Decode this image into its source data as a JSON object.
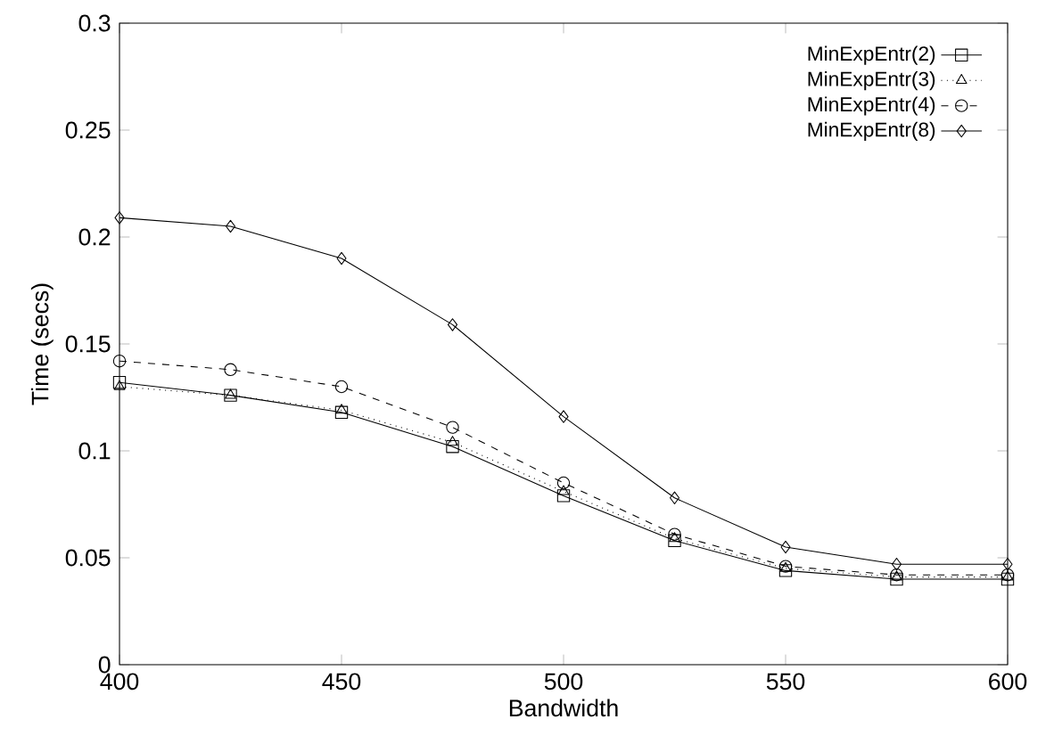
{
  "chart_data": {
    "type": "line",
    "xlabel": "Bandwidth",
    "ylabel": "Time (secs)",
    "x": [
      400,
      425,
      450,
      475,
      500,
      525,
      550,
      575,
      600
    ],
    "xlim": [
      400,
      600
    ],
    "xticks": [
      400,
      450,
      500,
      550,
      600
    ],
    "ylim": [
      0,
      0.3
    ],
    "yticks": [
      0,
      0.05,
      0.1,
      0.15,
      0.2,
      0.25,
      0.3
    ],
    "legend": "top right",
    "grid": false,
    "series": [
      {
        "name": "MinExpEntr(2)",
        "color": "#000000",
        "marker": "square",
        "line_style": "solid",
        "values": [
          0.132,
          0.126,
          0.118,
          0.102,
          0.079,
          0.058,
          0.044,
          0.04,
          0.04
        ]
      },
      {
        "name": "MinExpEntr(3)",
        "color": "#000000",
        "marker": "triangle",
        "line_style": "dotted",
        "values": [
          0.13,
          0.126,
          0.119,
          0.104,
          0.081,
          0.059,
          0.045,
          0.041,
          0.041
        ]
      },
      {
        "name": "MinExpEntr(4)",
        "color": "#000000",
        "marker": "circle",
        "line_style": "dashed",
        "values": [
          0.142,
          0.138,
          0.13,
          0.111,
          0.085,
          0.061,
          0.046,
          0.042,
          0.042
        ]
      },
      {
        "name": "MinExpEntr(8)",
        "color": "#000000",
        "marker": "diamond",
        "line_style": "solid",
        "values": [
          0.209,
          0.205,
          0.19,
          0.159,
          0.116,
          0.078,
          0.055,
          0.047,
          0.047
        ]
      }
    ]
  }
}
